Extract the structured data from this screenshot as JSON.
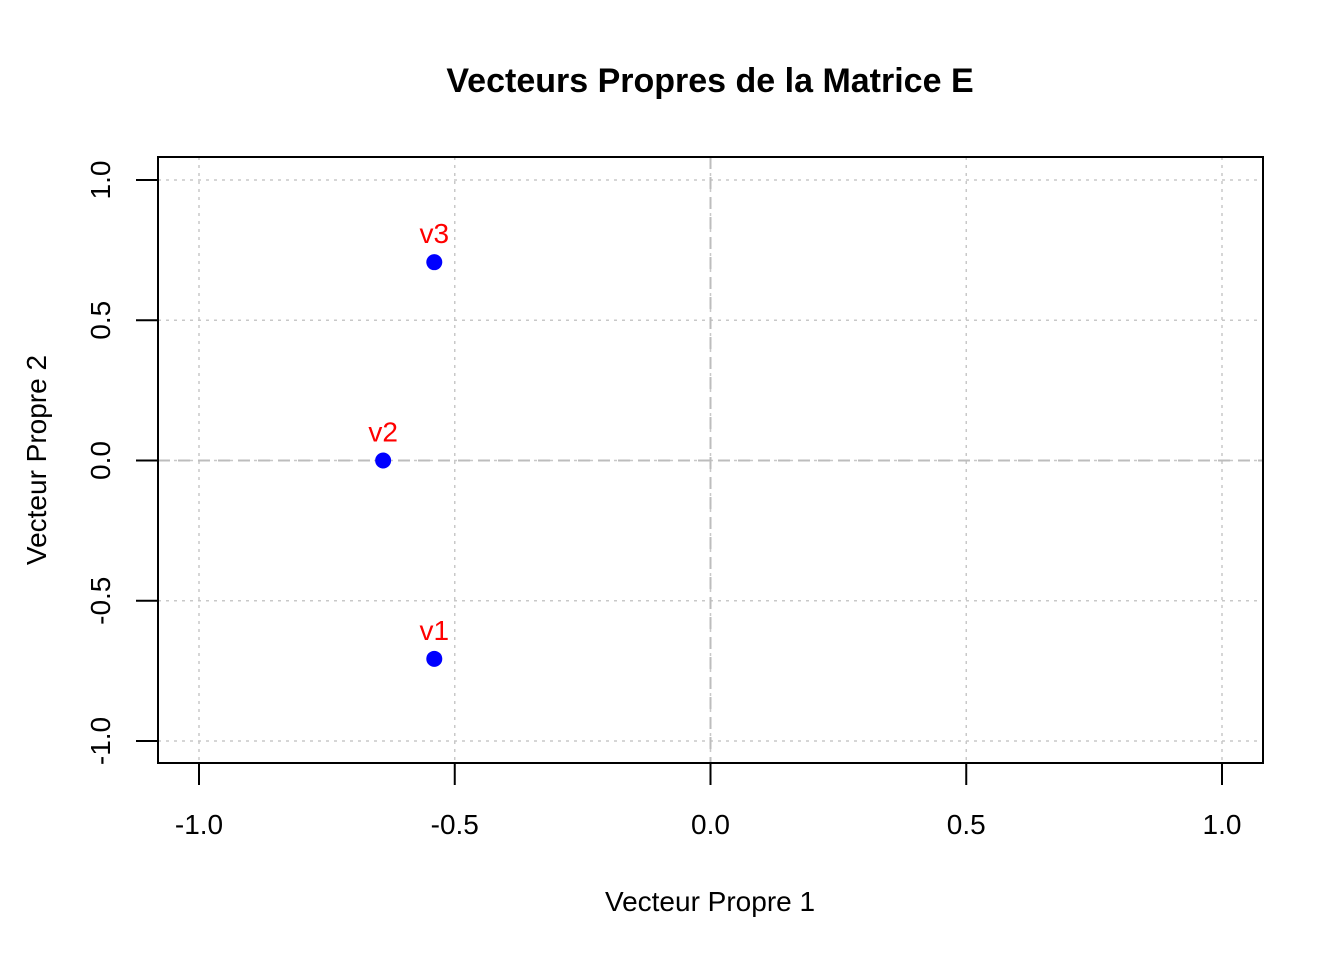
{
  "chart_data": {
    "type": "scatter",
    "title": "Vecteurs Propres de la Matrice E",
    "xlabel": "Vecteur Propre 1",
    "ylabel": "Vecteur Propre 2",
    "xlim": [
      -1.0,
      1.0
    ],
    "ylim": [
      -1.0,
      1.0
    ],
    "x_ticks": [
      -1.0,
      -0.5,
      0.0,
      0.5,
      1.0
    ],
    "y_ticks": [
      -1.0,
      -0.5,
      0.0,
      0.5,
      1.0
    ],
    "x_tick_labels": [
      "-1.0",
      "-0.5",
      "0.0",
      "0.5",
      "1.0"
    ],
    "y_tick_labels": [
      "-1.0",
      "-0.5",
      "0.0",
      "0.5",
      "1.0"
    ],
    "grid": true,
    "reference_lines": {
      "x": 0.0,
      "y": 0.0
    },
    "points": [
      {
        "label": "v1",
        "x": -0.54,
        "y": -0.707
      },
      {
        "label": "v2",
        "x": -0.64,
        "y": 0.0
      },
      {
        "label": "v3",
        "x": -0.54,
        "y": 0.707
      }
    ],
    "point_color": "#0000ff",
    "label_color": "#ff0000",
    "grid_color": "#c8c8c8"
  }
}
